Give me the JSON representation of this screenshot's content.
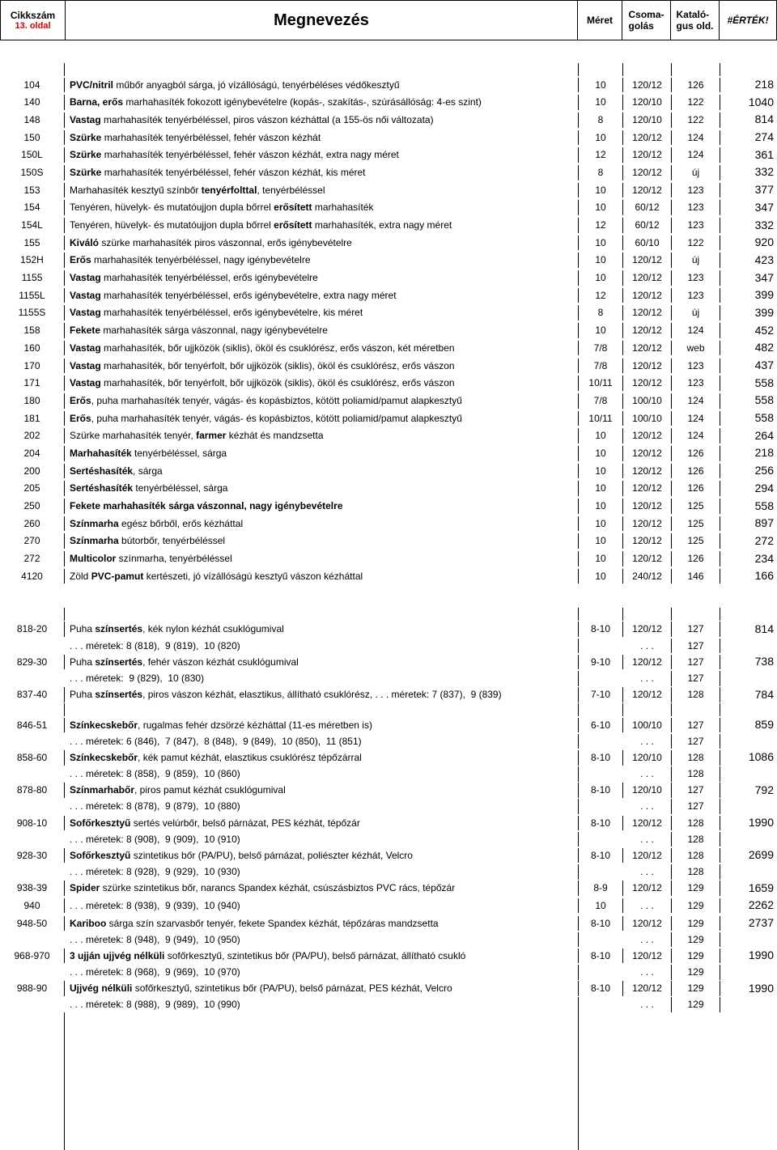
{
  "header": {
    "code_label": "Cikkszám",
    "code_sub": "13. oldal",
    "name_label": "Megnevezés",
    "size_label": "Méret",
    "pack_label": "Csoma-\ngolás",
    "cat_label": "Kataló-\ngus old.",
    "val_label": "#ÉRTÉK!"
  },
  "sections": [
    {
      "rows": [
        {
          "code": "104",
          "name": "<b>PVC/nitril</b> műbőr anyagból sárga, jó vízállóságú, tenyérbéléses védőkesztyű",
          "size": "10",
          "pack": "120/12",
          "cat": "126",
          "val": "218"
        },
        {
          "code": "140",
          "name": "<b>Barna, erős</b> marhahasíték fokozott igénybevételre (kopás-, szakítás-, szúrásállóság: 4-es szint)",
          "size": "10",
          "pack": "120/10",
          "cat": "122",
          "val": "1040"
        },
        {
          "code": "148",
          "name": "<b>Vastag</b> marhahasíték tenyérbéléssel, piros vászon kézháttal (a 155-ös női változata)",
          "size": "8",
          "pack": "120/10",
          "cat": "122",
          "val": "814"
        },
        {
          "code": "150",
          "name": "<b>Szürke</b> marhahasíték tenyérbéléssel, fehér vászon kézhát",
          "size": "10",
          "pack": "120/12",
          "cat": "124",
          "val": "274"
        },
        {
          "code": "150L",
          "name": "<b>Szürke</b> marhahasíték tenyérbéléssel, fehér vászon kézhát, extra nagy méret",
          "size": "12",
          "pack": "120/12",
          "cat": "124",
          "val": "361"
        },
        {
          "code": "150S",
          "name": "<b>Szürke</b> marhahasíték tenyérbéléssel, fehér vászon kézhát, kis méret",
          "size": "8",
          "pack": "120/12",
          "cat": "új",
          "val": "332"
        },
        {
          "code": "153",
          "name": "Marhahasíték kesztyű színbőr <b>tenyérfolttal</b>, tenyérbéléssel",
          "size": "10",
          "pack": "120/12",
          "cat": "123",
          "val": "377"
        },
        {
          "code": "154",
          "name": "Tenyéren, hüvelyk- és mutatóujjon dupla bőrrel <b>erősített</b> marhahasíték",
          "size": "10",
          "pack": "60/12",
          "cat": "123",
          "val": "347"
        },
        {
          "code": "154L",
          "name": "Tenyéren, hüvelyk- és mutatóujjon dupla bőrrel <b>erősített</b> marhahasíték, extra nagy méret",
          "size": "12",
          "pack": "60/12",
          "cat": "123",
          "val": "332"
        },
        {
          "code": "155",
          "name": "<b>Kiváló</b> szürke marhahasíték piros vászonnal, erős igénybevételre",
          "size": "10",
          "pack": "60/10",
          "cat": "122",
          "val": "920"
        },
        {
          "code": "152H",
          "name": "<b>Erős</b> marhahasíték tenyérbéléssel, nagy igénybevételre",
          "size": "10",
          "pack": "120/12",
          "cat": "új",
          "val": "423"
        },
        {
          "code": "1155",
          "name": "<b>Vastag</b> marhahasíték tenyérbéléssel, erős igénybevételre",
          "size": "10",
          "pack": "120/12",
          "cat": "123",
          "val": "347"
        },
        {
          "code": "1155L",
          "name": "<b>Vastag</b> marhahasíték tenyérbéléssel, erős igénybevételre, extra nagy méret",
          "size": "12",
          "pack": "120/12",
          "cat": "123",
          "val": "399"
        },
        {
          "code": "1155S",
          "name": "<b>Vastag</b> marhahasíték tenyérbéléssel, erős igénybevételre, kis méret",
          "size": "8",
          "pack": "120/12",
          "cat": "új",
          "val": "399"
        },
        {
          "code": "158",
          "name": "<b>Fekete</b> marhahasíték sárga vászonnal, nagy igénybevételre",
          "size": "10",
          "pack": "120/12",
          "cat": "124",
          "val": "452"
        },
        {
          "code": "160",
          "name": "<b>Vastag</b> marhahasíték, bőr ujjközök (siklis), ököl és csuklórész, erős vászon, két méretben",
          "size": "7/8",
          "pack": "120/12",
          "cat": "web",
          "val": "482"
        },
        {
          "code": "170",
          "name": "<b>Vastag</b> marhahasíték, bőr tenyérfolt, bőr ujjközök (siklis), ököl és csuklórész, erős vászon",
          "size": "7/8",
          "pack": "120/12",
          "cat": "123",
          "val": "437"
        },
        {
          "code": "171",
          "name": "<b>Vastag</b> marhahasíték, bőr tenyérfolt, bőr ujjközök (siklis), ököl és csuklórész, erős vászon",
          "size": "10/11",
          "pack": "120/12",
          "cat": "123",
          "val": "558"
        },
        {
          "code": "180",
          "name": "<b>Erős</b>, puha marhahasíték tenyér, vágás- és kopásbiztos, kötött poliamid/pamut alapkesztyű",
          "size": "7/8",
          "pack": "100/10",
          "cat": "124",
          "val": "558"
        },
        {
          "code": "181",
          "name": "<b>Erős</b>, puha marhahasíték tenyér, vágás- és kopásbiztos, kötött poliamid/pamut alapkesztyű",
          "size": "10/11",
          "pack": "100/10",
          "cat": "124",
          "val": "558"
        },
        {
          "code": "202",
          "name": "Szürke marhahasíték tenyér, <b>farmer</b> kézhát és mandzsetta",
          "size": "10",
          "pack": "120/12",
          "cat": "124",
          "val": "264"
        },
        {
          "code": "204",
          "name": "<b>Marhahasíték</b> tenyérbéléssel, sárga",
          "size": "10",
          "pack": "120/12",
          "cat": "126",
          "val": "218"
        },
        {
          "code": "200",
          "name": "<b>Sertéshasíték</b>, sárga",
          "size": "10",
          "pack": "120/12",
          "cat": "126",
          "val": "256"
        },
        {
          "code": "205",
          "name": "<b>Sertéshasíték</b> tenyérbéléssel, sárga",
          "size": "10",
          "pack": "120/12",
          "cat": "126",
          "val": "294"
        },
        {
          "code": "250",
          "name": "<b>Fekete marhahasíték sárga vászonnal, nagy igénybevételre</b>",
          "size": "10",
          "pack": "120/12",
          "cat": "125",
          "val": "558"
        },
        {
          "code": "260",
          "name": "<b>Színmarha</b> egész bőrből, erős kézháttal",
          "size": "10",
          "pack": "120/12",
          "cat": "125",
          "val": "897"
        },
        {
          "code": "270",
          "name": "<b>Színmarha</b> bútorbőr, tenyérbéléssel",
          "size": "10",
          "pack": "120/12",
          "cat": "125",
          "val": "272"
        },
        {
          "code": "272",
          "name": "<b>Multicolor</b> színmarha, tenyérbéléssel",
          "size": "10",
          "pack": "120/12",
          "cat": "126",
          "val": "234"
        },
        {
          "code": "4120",
          "name": "Zöld <b>PVC-pamut</b> kertészeti, jó vízállóságú kesztyű vászon kézháttal",
          "size": "10",
          "pack": "240/12",
          "cat": "146",
          "val": "166"
        }
      ]
    },
    {
      "rows": [
        {
          "code": "818-20",
          "name": "Puha <b>színsertés</b>, kék nylon kézhát csuklógumival",
          "size": "8-10",
          "pack": "120/12",
          "cat": "127",
          "val": "814"
        },
        {
          "code": "",
          "name": ". . . méretek: 8 (818),&nbsp;&nbsp;9 (819),&nbsp;&nbsp;10 (820)",
          "size": "",
          "pack": ". . .",
          "cat": "127",
          "val": ""
        },
        {
          "code": "829-30",
          "name": "Puha <b>színsertés</b>, fehér vászon kézhát csuklógumival",
          "size": "9-10",
          "pack": "120/12",
          "cat": "127",
          "val": "738"
        },
        {
          "code": "",
          "name": ". . . méretek:&nbsp;&nbsp;9 (829),&nbsp;&nbsp;10 (830)",
          "size": "",
          "pack": ". . .",
          "cat": "127",
          "val": ""
        },
        {
          "code": "837-40",
          "name": "Puha <b>színsertés</b>, piros vászon kézhát, elasztikus, állítható csuklórész, . . . méretek: 7 (837),&nbsp;&nbsp;9 (839)",
          "size": "7-10",
          "pack": "120/12",
          "cat": "128",
          "val": "784"
        },
        {
          "type": "spacer"
        },
        {
          "code": "846-51",
          "name": "<b>Színkecskebőr</b>, rugalmas fehér dzsörzé kézháttal (11-es méretben is)",
          "size": "6-10",
          "pack": "100/10",
          "cat": "127",
          "val": "859"
        },
        {
          "code": "",
          "name": ". . . méretek: 6 (846),&nbsp;&nbsp;7 (847),&nbsp;&nbsp;8 (848),&nbsp;&nbsp;9 (849),&nbsp;&nbsp;10 (850),&nbsp;&nbsp;11 (851)",
          "size": "",
          "pack": ". . .",
          "cat": "127",
          "val": ""
        },
        {
          "code": "858-60",
          "name": "<b>Színkecskebőr</b>, kék pamut kézhát, elasztikus csuklórész tépőzárral",
          "size": "8-10",
          "pack": "120/10",
          "cat": "128",
          "val": "1086"
        },
        {
          "code": "",
          "name": ". . . méretek: 8 (858),&nbsp;&nbsp;9 (859),&nbsp;&nbsp;10 (860)",
          "size": "",
          "pack": ". . .",
          "cat": "128",
          "val": ""
        },
        {
          "code": "878-80",
          "name": "<b>Színmarhabőr</b>, piros pamut kézhát csuklógumival",
          "size": "8-10",
          "pack": "120/10",
          "cat": "127",
          "val": "792"
        },
        {
          "code": "",
          "name": ". . . méretek: 8 (878),&nbsp;&nbsp;9 (879),&nbsp;&nbsp;10 (880)",
          "size": "",
          "pack": ". . .",
          "cat": "127",
          "val": ""
        },
        {
          "code": "908-10",
          "name": "<b>Sofőrkesztyű</b> sertés velúrbőr, belső párnázat, PES kézhát, tépőzár",
          "size": "8-10",
          "pack": "120/12",
          "cat": "128",
          "val": "1990"
        },
        {
          "code": "",
          "name": ". . . méretek: 8 (908),&nbsp;&nbsp;9 (909),&nbsp;&nbsp;10 (910)",
          "size": "",
          "pack": ". . .",
          "cat": "128",
          "val": ""
        },
        {
          "code": "928-30",
          "name": "<b>Sofőrkesztyű</b> szintetikus bőr (PA/PU), belső párnázat, poliészter kézhát, Velcro",
          "size": "8-10",
          "pack": "120/12",
          "cat": "128",
          "val": "2699"
        },
        {
          "code": "",
          "name": ". . . méretek: 8 (928),&nbsp;&nbsp;9 (929),&nbsp;&nbsp;10 (930)",
          "size": "",
          "pack": ". . .",
          "cat": "128",
          "val": ""
        },
        {
          "code": "938-39",
          "name": "<b>Spider</b> szürke szintetikus bőr, narancs Spandex kézhát, csúszásbiztos PVC rács, tépőzár",
          "size": "8-9",
          "pack": "120/12",
          "cat": "129",
          "val": "1659"
        },
        {
          "code": "940",
          "name": ". . . méretek: 8 (938),&nbsp;&nbsp;9 (939),&nbsp;&nbsp;10 (940)",
          "size": "10",
          "pack": ". . .",
          "cat": "129",
          "val": "2262"
        },
        {
          "code": "948-50",
          "name": "<b>Kariboo</b> sárga szín szarvasbőr tenyér, fekete Spandex kézhát, tépőzáras mandzsetta",
          "size": "8-10",
          "pack": "120/12",
          "cat": "129",
          "val": "2737"
        },
        {
          "code": "",
          "name": ". . . méretek: 8 (948),&nbsp;&nbsp;9 (949),&nbsp;&nbsp;10 (950)",
          "size": "",
          "pack": ". . .",
          "cat": "129",
          "val": ""
        },
        {
          "code": "968-970",
          "name": "<b>3 ujján ujjvég nélküli</b> sofőrkesztyű, szintetikus bőr (PA/PU), belső párnázat, állítható csukló",
          "size": "8-10",
          "pack": "120/12",
          "cat": "129",
          "val": "1990"
        },
        {
          "code": "",
          "name": ". . . méretek: 8 (968),&nbsp;&nbsp;9 (969),&nbsp;&nbsp;10 (970)",
          "size": "",
          "pack": ". . .",
          "cat": "129",
          "val": ""
        },
        {
          "code": "988-90",
          "name": "<b>Ujjvég nélküli</b> sofőrkesztyű, szintetikus bőr (PA/PU), belső párnázat, PES kézhát, Velcro",
          "size": "8-10",
          "pack": "120/12",
          "cat": "129",
          "val": "1990"
        },
        {
          "code": "",
          "name": ". . . méretek: 8 (988),&nbsp;&nbsp;9 (989),&nbsp;&nbsp;10 (990)",
          "size": "",
          "pack": ". . .",
          "cat": "129",
          "val": ""
        }
      ]
    }
  ]
}
